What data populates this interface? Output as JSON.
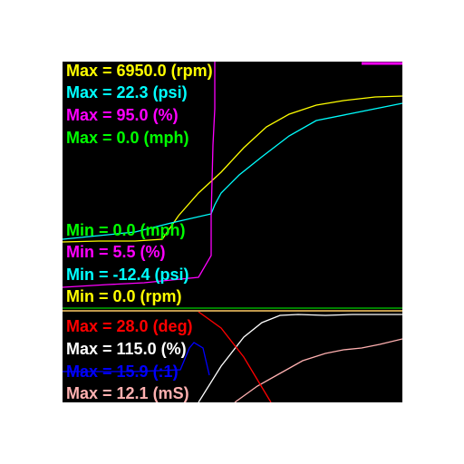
{
  "upper_panel": {
    "max_labels": [
      {
        "text": "Max = 6950.0 (rpm)",
        "color": "#ffff00"
      },
      {
        "text": "Max = 22.3 (psi)",
        "color": "#00ffff"
      },
      {
        "text": "Max = 95.0 (%)",
        "color": "#ff00ff"
      },
      {
        "text": "Max = 0.0 (mph)",
        "color": "#00ff00"
      }
    ],
    "min_labels": [
      {
        "text": "Min = 0.0 (mph)",
        "color": "#00ff00"
      },
      {
        "text": "Min = 5.5 (%)",
        "color": "#ff00ff"
      },
      {
        "text": "Min = -12.4 (psi)",
        "color": "#00ffff"
      },
      {
        "text": "Min = 0.0 (rpm)",
        "color": "#ffff00"
      }
    ]
  },
  "lower_panel": {
    "max_labels": [
      {
        "text": "Max = 28.0 (deg)",
        "color": "#ff0000"
      },
      {
        "text": "Max = 115.0 (%)",
        "color": "#ffffff"
      },
      {
        "text": "Max = 15.9 (:1)",
        "color": "#0000ff"
      },
      {
        "text": "Max = 12.1 (mS)",
        "color": "#ffb0b0"
      }
    ]
  },
  "colors": {
    "background": "#000000",
    "rpm": "#ffff00",
    "psi": "#00ffff",
    "throttle": "#ff00ff",
    "speed": "#00ff00",
    "timing": "#ff0000",
    "ve": "#ffffff",
    "afr": "#0000ff",
    "injector": "#ffb0b0",
    "divider": "#ffffff",
    "panel_edge": "#ffcc66"
  }
}
